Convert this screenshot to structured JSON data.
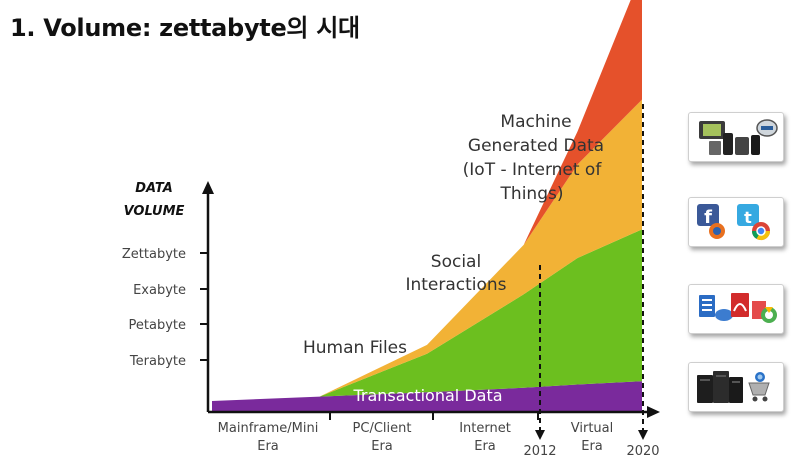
{
  "page": {
    "title": "1. Volume: zettabyte의 시대"
  },
  "chart_data": {
    "type": "area",
    "title": "",
    "ylabel_line1": "DATA",
    "ylabel_line2": "VOLUME",
    "y_ticks": [
      "Terabyte",
      "Petabyte",
      "Exabyte",
      "Zettabyte"
    ],
    "x_categories": [
      {
        "line1": "Mainframe/Mini",
        "line2": "Era"
      },
      {
        "line1": "PC/Client",
        "line2": "Era"
      },
      {
        "line1": "Internet",
        "line2": "Era"
      },
      {
        "line1": "Virtual",
        "line2": "Era"
      }
    ],
    "x_markers": [
      "2012",
      "2020"
    ],
    "x_points": [
      0,
      1,
      2,
      2.9,
      3.4,
      4
    ],
    "series": [
      {
        "name": "Transactional Data",
        "color": "#7a2a9c",
        "values": [
          0.1,
          0.14,
          0.18,
          0.22,
          0.25,
          0.28
        ]
      },
      {
        "name": "Human Files",
        "color": "#6cbf1f",
        "values": [
          0.0,
          0.0,
          0.35,
          0.85,
          1.15,
          1.38
        ]
      },
      {
        "name": "Social Interactions",
        "color": "#f2b236",
        "values": [
          0.0,
          0.0,
          0.08,
          0.45,
          0.85,
          1.18
        ]
      },
      {
        "name": "Machine Generated Data (IoT - Internet of Things)",
        "color": "#e5512b",
        "values": [
          0.0,
          0.0,
          0.0,
          0.0,
          0.3,
          1.16
        ]
      }
    ],
    "labels": {
      "human_files": "Human Files",
      "transactional": "Transactional Data",
      "social_line1": "Social",
      "social_line2": "Interactions",
      "machine_line1": "Machine",
      "machine_line2": "Generated Data",
      "machine_line3": "(IoT - Internet of",
      "machine_line4": "Things)"
    },
    "source_icons": [
      "devices-icon",
      "social-media-icon",
      "documents-icon",
      "servers-icon"
    ]
  }
}
